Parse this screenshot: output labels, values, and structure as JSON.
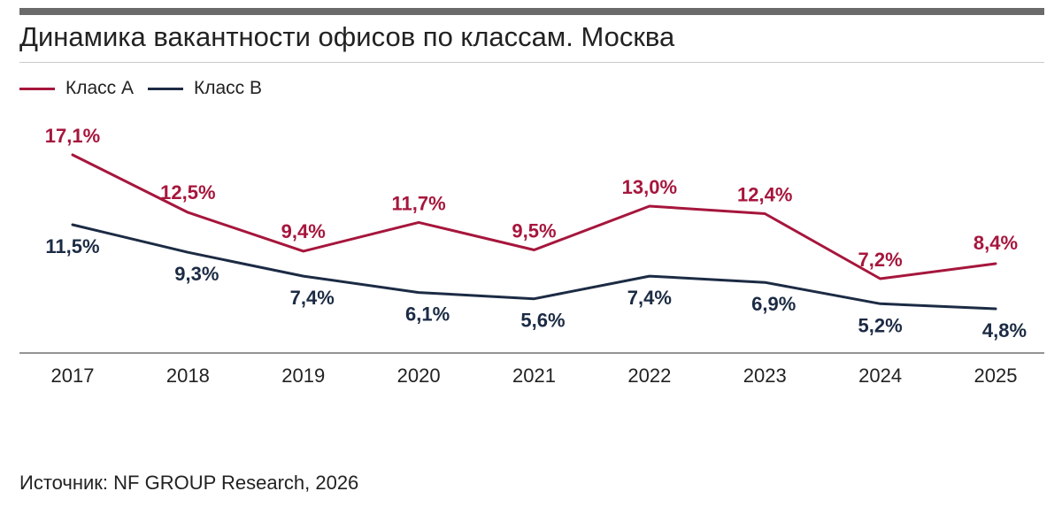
{
  "title": "Динамика вакантности офисов по классам. Москва",
  "source": "Источник: NF GROUP Research, 2026",
  "legend": [
    {
      "label": "Класс  A",
      "color": "#a6163c"
    },
    {
      "label": "Класс  B",
      "color": "#1c2b44"
    }
  ],
  "chart_data": {
    "type": "line",
    "title": "Динамика вакантности офисов по классам. Москва",
    "xlabel": "",
    "ylabel": "",
    "grid": false,
    "legend_position": "top-left",
    "ylim": [
      0,
      20
    ],
    "categories": [
      "2017",
      "2018",
      "2019",
      "2020",
      "2021",
      "2022",
      "2023",
      "2024",
      "2025"
    ],
    "series": [
      {
        "name": "Класс  A",
        "color": "#a6163c",
        "values": [
          17.1,
          12.5,
          9.4,
          11.7,
          9.5,
          13.0,
          12.4,
          7.2,
          8.4
        ],
        "labels": [
          "17,1%",
          "12,5%",
          "9,4%",
          "11,7%",
          "9,5%",
          "13,0%",
          "12,4%",
          "7,2%",
          "8,4%"
        ]
      },
      {
        "name": "Класс  B",
        "color": "#1c2b44",
        "values": [
          11.5,
          9.3,
          7.4,
          6.1,
          5.6,
          7.4,
          6.9,
          5.2,
          4.8
        ],
        "labels": [
          "11,5%",
          "9,3%",
          "7,4%",
          "6,1%",
          "5,6%",
          "7,4%",
          "6,9%",
          "5,2%",
          "4,8%"
        ]
      }
    ]
  }
}
